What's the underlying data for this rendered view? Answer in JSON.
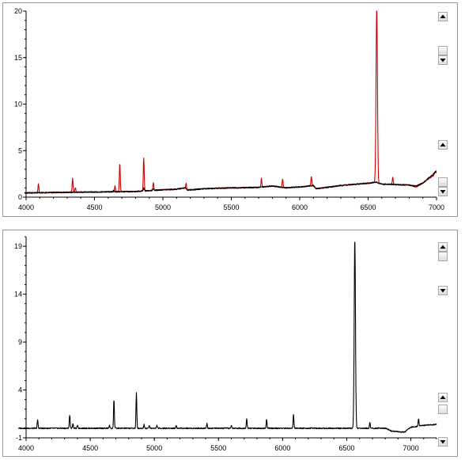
{
  "chart_data": [
    {
      "type": "line",
      "xlim": [
        4000,
        7000
      ],
      "ylim": [
        0,
        20
      ],
      "x_ticks": [
        "4000",
        "4500",
        "5000",
        "5500",
        "6000",
        "6500",
        "7000"
      ],
      "y_ticks": [
        "0",
        "5",
        "10",
        "15",
        "20"
      ],
      "series": [
        {
          "color": "#cc0000",
          "baseline": [
            [
              3990,
              0.45
            ],
            [
              4200,
              0.5
            ],
            [
              4500,
              0.55
            ],
            [
              4800,
              0.6
            ],
            [
              4850,
              0.65
            ],
            [
              4950,
              0.75
            ],
            [
              5100,
              0.85
            ],
            [
              5160,
              1.0
            ],
            [
              5170,
              0.75
            ],
            [
              5300,
              0.9
            ],
            [
              5500,
              1.0
            ],
            [
              5700,
              1.05
            ],
            [
              5800,
              1.2
            ],
            [
              5900,
              1.0
            ],
            [
              6000,
              1.1
            ],
            [
              6100,
              1.25
            ],
            [
              6120,
              0.9
            ],
            [
              6300,
              1.25
            ],
            [
              6500,
              1.5
            ],
            [
              6560,
              1.6
            ],
            [
              6600,
              1.4
            ],
            [
              6800,
              1.3
            ],
            [
              6850,
              1.1
            ],
            [
              6900,
              1.5
            ],
            [
              7000,
              2.6
            ]
          ],
          "peaks": [
            {
              "x": 4090,
              "h": 1.0
            },
            {
              "x": 4340,
              "h": 1.5
            },
            {
              "x": 4360,
              "h": 0.5
            },
            {
              "x": 4650,
              "h": 0.6
            },
            {
              "x": 4685,
              "h": 3.1
            },
            {
              "x": 4860,
              "h": 3.6
            },
            {
              "x": 4930,
              "h": 0.8
            },
            {
              "x": 5170,
              "h": 0.7
            },
            {
              "x": 5720,
              "h": 0.9
            },
            {
              "x": 5875,
              "h": 0.9
            },
            {
              "x": 6085,
              "h": 1.0
            },
            {
              "x": 6563,
              "h": 19.0
            },
            {
              "x": 6680,
              "h": 0.8
            },
            {
              "x": 6990,
              "h": 0.3
            }
          ]
        },
        {
          "color": "#000000",
          "baseline": [
            [
              3990,
              0.45
            ],
            [
              4200,
              0.5
            ],
            [
              4500,
              0.55
            ],
            [
              4800,
              0.6
            ],
            [
              4850,
              0.65
            ],
            [
              4950,
              0.75
            ],
            [
              5100,
              0.85
            ],
            [
              5160,
              1.0
            ],
            [
              5170,
              0.75
            ],
            [
              5300,
              0.9
            ],
            [
              5500,
              1.0
            ],
            [
              5700,
              1.05
            ],
            [
              5800,
              1.2
            ],
            [
              5900,
              1.0
            ],
            [
              6000,
              1.1
            ],
            [
              6100,
              1.25
            ],
            [
              6120,
              0.9
            ],
            [
              6300,
              1.25
            ],
            [
              6500,
              1.5
            ],
            [
              6560,
              1.6
            ],
            [
              6600,
              1.4
            ],
            [
              6800,
              1.3
            ],
            [
              6850,
              1.2
            ],
            [
              6900,
              1.5
            ],
            [
              7000,
              2.8
            ]
          ],
          "peaks": [
            {
              "x": 4640,
              "h": 0.2
            },
            {
              "x": 4860,
              "h": 0.3
            },
            {
              "x": 4930,
              "h": 0.2
            },
            {
              "x": 5170,
              "h": 0.2
            }
          ]
        }
      ]
    },
    {
      "type": "line",
      "xlim": [
        4000,
        7200
      ],
      "ylim": [
        -1,
        20
      ],
      "x_ticks": [
        "4000",
        "4500",
        "5000",
        "5500",
        "6000",
        "6500",
        "7000"
      ],
      "y_ticks": [
        "-1",
        "4",
        "9",
        "14",
        "19"
      ],
      "series": [
        {
          "color": "#000000",
          "baseline": [
            [
              3940,
              0.0
            ],
            [
              4500,
              0.0
            ],
            [
              6800,
              0.0
            ],
            [
              6850,
              -0.3
            ],
            [
              6950,
              -0.4
            ],
            [
              7000,
              0.1
            ],
            [
              7100,
              0.3
            ],
            [
              7200,
              0.4
            ]
          ],
          "peaks": [
            {
              "x": 4090,
              "h": 0.9
            },
            {
              "x": 4340,
              "h": 1.4
            },
            {
              "x": 4365,
              "h": 0.5
            },
            {
              "x": 4400,
              "h": 0.3
            },
            {
              "x": 4650,
              "h": 0.3
            },
            {
              "x": 4685,
              "h": 3.0
            },
            {
              "x": 4860,
              "h": 3.7
            },
            {
              "x": 4920,
              "h": 0.4
            },
            {
              "x": 4960,
              "h": 0.3
            },
            {
              "x": 5020,
              "h": 0.3
            },
            {
              "x": 5170,
              "h": 0.3
            },
            {
              "x": 5410,
              "h": 0.5
            },
            {
              "x": 5600,
              "h": 0.3
            },
            {
              "x": 5720,
              "h": 1.0
            },
            {
              "x": 5875,
              "h": 0.9
            },
            {
              "x": 6085,
              "h": 1.5
            },
            {
              "x": 6563,
              "h": 19.8
            },
            {
              "x": 6680,
              "h": 0.6
            },
            {
              "x": 7060,
              "h": 0.8
            }
          ]
        }
      ]
    }
  ]
}
